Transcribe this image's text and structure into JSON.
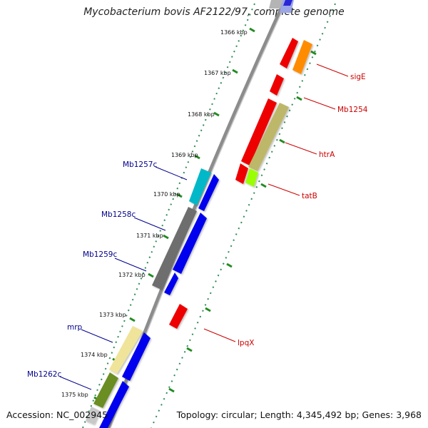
{
  "map": {
    "title": "Mycobacterium bovis AF2122/97, complete genome",
    "accession": "Accession: NC_002945",
    "summary": "Topology: circular; Length: 4,345,492 bp; Genes: 3,968"
  },
  "ticks": [
    "1366 kbp",
    "1367 kbp",
    "1368 kbp",
    "1369 kbp",
    "1370 kbp",
    "1371 kbp",
    "1372 kbp",
    "1373 kbp",
    "1374 kbp",
    "1375 kbp"
  ],
  "genes_forward": [
    {
      "label": "sigE",
      "color": "#cc0000"
    },
    {
      "label": "Mb1254",
      "color": "#cc0000"
    },
    {
      "label": "htrA",
      "color": "#cc0000"
    },
    {
      "label": "tatB",
      "color": "#cc0000"
    },
    {
      "label": "lpqX",
      "color": "#cc0000"
    }
  ],
  "genes_reverse": [
    {
      "label": "Mb1257c",
      "color": "#00008b"
    },
    {
      "label": "Mb1258c",
      "color": "#00008b"
    },
    {
      "label": "Mb1259c",
      "color": "#00008b"
    },
    {
      "label": "mrp",
      "color": "#00008b"
    },
    {
      "label": "Mb1262c",
      "color": "#00008b"
    }
  ]
}
